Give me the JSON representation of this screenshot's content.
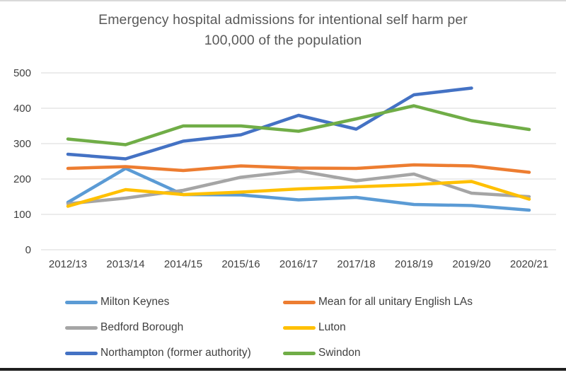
{
  "chart_data": {
    "type": "line",
    "title": "Emergency hospital admissions for intentional self harm per 100,000 of the population",
    "title_lines": [
      "Emergency hospital admissions for intentional self harm per",
      "100,000 of the population"
    ],
    "categories": [
      "2012/13",
      "2013/14",
      "2014/15",
      "2015/16",
      "2016/17",
      "2017/18",
      "2018/19",
      "2019/20",
      "2020/21"
    ],
    "series": [
      {
        "name": "Milton Keynes",
        "color": "#5B9BD5",
        "values": [
          134,
          230,
          156,
          155,
          141,
          148,
          128,
          125,
          112
        ]
      },
      {
        "name": "Mean for all unitary English LAs",
        "color": "#ED7D31",
        "values": [
          230,
          235,
          224,
          237,
          231,
          230,
          240,
          237,
          219
        ]
      },
      {
        "name": "Bedford Borough",
        "color": "#A5A5A5",
        "values": [
          130,
          146,
          168,
          205,
          223,
          195,
          214,
          160,
          150
        ]
      },
      {
        "name": "Luton",
        "color": "#FFC000",
        "values": [
          123,
          170,
          156,
          163,
          172,
          178,
          184,
          193,
          143
        ]
      },
      {
        "name": "Northampton (former authority)",
        "color": "#4472C4",
        "values": [
          270,
          257,
          307,
          325,
          380,
          341,
          438,
          457,
          null
        ]
      },
      {
        "name": "Swindon",
        "color": "#70AD47",
        "values": [
          313,
          297,
          350,
          350,
          335,
          370,
          407,
          365,
          340
        ]
      }
    ],
    "ylim": [
      0,
      500
    ],
    "yticks": [
      0,
      100,
      200,
      300,
      400,
      500
    ],
    "xlabel": "",
    "ylabel": "",
    "grid": "horizontal",
    "legend_position": "bottom"
  },
  "style": {
    "title_color": "#595959",
    "axis_text_color": "#404040",
    "legend_text_color": "#404040",
    "gridline_color": "#D9D9D9",
    "top_border_color": "#D9D9D9",
    "bottom_border_color": "#1f1f1f",
    "background": "#FFFFFF"
  }
}
